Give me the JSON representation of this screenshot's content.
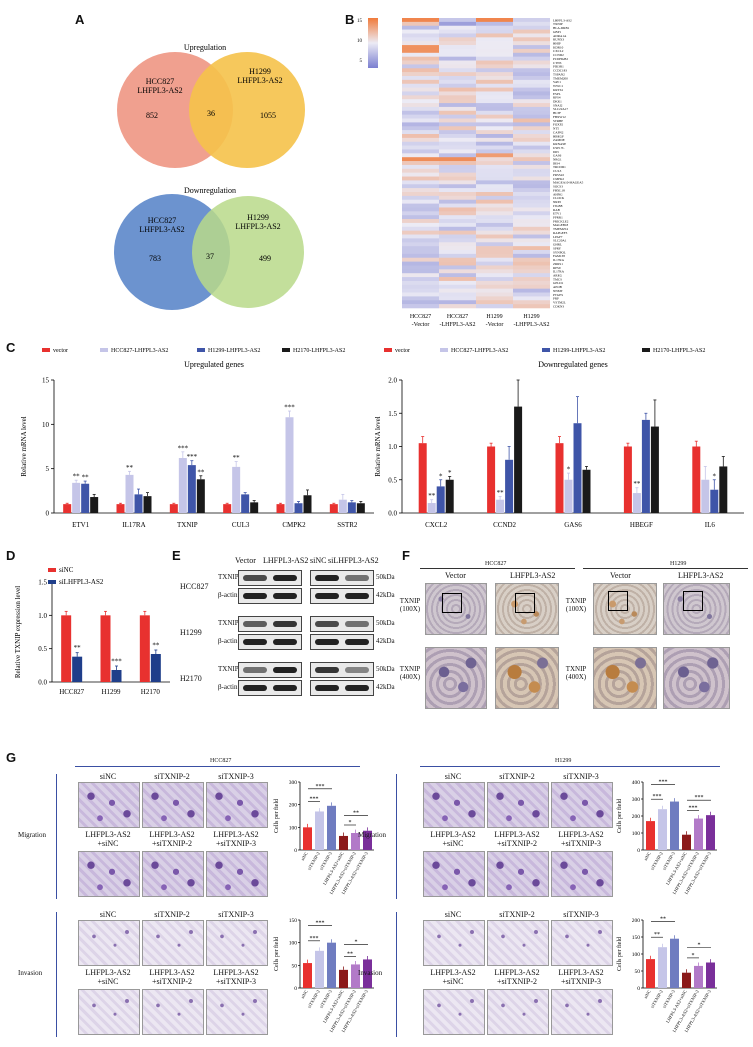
{
  "panels": {
    "A": "A",
    "B": "B",
    "C": "C",
    "D": "D",
    "E": "E",
    "F": "F",
    "G": "G"
  },
  "venn": {
    "up_title": "Upregulation",
    "down_title": "Downregulation",
    "left_label_1": "HCC827",
    "left_label_2": "LHFPL3-AS2",
    "right_label_1": "H1299",
    "right_label_2": "LHFPL3-AS2",
    "up_counts": [
      "852",
      "36",
      "1055"
    ],
    "down_counts": [
      "783",
      "37",
      "499"
    ],
    "colors": {
      "up_left": "#f0a08f",
      "up_right": "#f5c24a",
      "down_left": "#6c93cf",
      "down_right": "#b9d98a"
    }
  },
  "heatmap": {
    "scale_ticks": [
      "15",
      "10",
      "5"
    ],
    "columns": [
      "HCC827\n-Vector",
      "HCC827\n-LHFPL3-AS2",
      "H1299\n-Vector",
      "H1299\n-LHFPL3-AS2"
    ],
    "genes": [
      "LHFPL3-AS2",
      "TXNIP",
      "HLA-DRB1",
      "GBP1",
      "ADRA1A",
      "RUNX3",
      "HHIP",
      "KDR10",
      "CXCL2",
      "CCND2",
      "PCDHGB2",
      "CTNS",
      "PIK3R1",
      "CCDC183",
      "TSPAN2",
      "TMEM200",
      "VAV1",
      "WWC1",
      "KRT34",
      "ESPL",
      "RPS4",
      "DKK1",
      "SNAI2",
      "SLC22A17",
      "HLTF",
      "FBXW12",
      "STRBP",
      "FOXP2",
      "NT5",
      "CAPN2",
      "HBEGF",
      "ZAMDE",
      "KRNASE",
      "USP17L",
      "D63",
      "GAS6",
      "NRG1",
      "IRS4",
      "TRCDD1",
      "CUL3",
      "PRSS22",
      "CMPK2",
      "MAGEA10-MAGEA5",
      "SOCS3",
      "FBXL18",
      "AHNG",
      "CLOCK",
      "NRP2",
      "ITGB8",
      "RAB",
      "ETV1",
      "PPRR1",
      "PRICKLE2",
      "MAGEB18",
      "TMEM254",
      "RAPGEF3",
      "LPAP7",
      "SLC20A1",
      "GHRL",
      "SPRY",
      "SYNPOL",
      "FAM138",
      "IL17RA",
      "ZRRS1",
      "RPS9",
      "IL17RA",
      "AREG",
      "TMCS",
      "GPLD1",
      "APOB",
      "NNMT",
      "PTGES",
      "PRP",
      "VSTM2L",
      "CDKN3"
    ],
    "colors": {
      "low": "#7b7fd0",
      "mid": "#ecebf5",
      "high": "#f07a3a"
    }
  },
  "chart_data": [
    {
      "type": "bar",
      "title": "Upregulated genes",
      "ylabel": "Relative mRNA level",
      "ylim": [
        0,
        15
      ],
      "yticks": [
        "0",
        "5",
        "10",
        "15"
      ],
      "categories": [
        "ETV1",
        "IL17RA",
        "TXNIP",
        "CUL3",
        "CMPK2",
        "SSTR2"
      ],
      "series": [
        {
          "name": "vector",
          "color": "#e8312f",
          "values": [
            1.0,
            1.0,
            1.0,
            1.0,
            1.0,
            1.0
          ]
        },
        {
          "name": "HCC827-LHFPL3-AS2",
          "color": "#c5c5e8",
          "values": [
            3.4,
            4.3,
            6.2,
            5.2,
            10.8,
            1.5
          ]
        },
        {
          "name": "H1299-LHFPL3-AS2",
          "color": "#3f55a8",
          "values": [
            3.3,
            2.1,
            5.4,
            2.1,
            1.1,
            1.2
          ]
        },
        {
          "name": "H2170-LHFPL3-AS2",
          "color": "#1a1a1a",
          "values": [
            1.8,
            1.9,
            3.8,
            1.2,
            2.0,
            1.1
          ]
        }
      ],
      "errors": [
        [
          0.1,
          0.1,
          0.1,
          0.1,
          0.1,
          0.1
        ],
        [
          0.3,
          0.4,
          0.7,
          0.6,
          0.7,
          0.6
        ],
        [
          0.3,
          0.6,
          0.5,
          0.2,
          0.2,
          0.2
        ],
        [
          0.3,
          0.4,
          0.4,
          0.2,
          0.6,
          0.2
        ]
      ],
      "sig": [
        [
          "ETV1",
          1,
          "**"
        ],
        [
          "ETV1",
          2,
          "**"
        ],
        [
          "IL17RA",
          1,
          "**"
        ],
        [
          "TXNIP",
          1,
          "***"
        ],
        [
          "TXNIP",
          2,
          "***"
        ],
        [
          "TXNIP",
          3,
          "**"
        ],
        [
          "CUL3",
          1,
          "**"
        ],
        [
          "CMPK2",
          1,
          "***"
        ]
      ]
    },
    {
      "type": "bar",
      "title": "Downregulated genes",
      "ylabel": "Relative mRNA level",
      "ylim": [
        0,
        2.0
      ],
      "yticks": [
        "0.0",
        "0.5",
        "1.0",
        "1.5",
        "2.0"
      ],
      "categories": [
        "CXCL2",
        "CCND2",
        "GAS6",
        "HBEGF",
        "IL6"
      ],
      "series": [
        {
          "name": "vector",
          "color": "#e8312f",
          "values": [
            1.05,
            1.0,
            1.05,
            1.0,
            1.0
          ]
        },
        {
          "name": "HCC827-LHFPL3-AS2",
          "color": "#c5c5e8",
          "values": [
            0.15,
            0.2,
            0.5,
            0.3,
            0.5
          ]
        },
        {
          "name": "H1299-LHFPL3-AS2",
          "color": "#3f55a8",
          "values": [
            0.4,
            0.8,
            1.35,
            1.4,
            0.35
          ]
        },
        {
          "name": "H2170-LHFPL3-AS2",
          "color": "#1a1a1a",
          "values": [
            0.5,
            1.6,
            0.65,
            1.3,
            0.7
          ]
        }
      ],
      "errors": [
        [
          0.1,
          0.05,
          0.1,
          0.05,
          0.08
        ],
        [
          0.05,
          0.05,
          0.1,
          0.08,
          0.2
        ],
        [
          0.1,
          0.2,
          0.4,
          0.1,
          0.15
        ],
        [
          0.05,
          0.4,
          0.05,
          0.4,
          0.15
        ]
      ],
      "sig": [
        [
          "CXCL2",
          1,
          "**"
        ],
        [
          "CXCL2",
          2,
          "*"
        ],
        [
          "CXCL2",
          3,
          "*"
        ],
        [
          "CCND2",
          1,
          "**"
        ],
        [
          "GAS6",
          1,
          "*"
        ],
        [
          "HBEGF",
          1,
          "**"
        ],
        [
          "IL6",
          2,
          "*"
        ]
      ]
    },
    {
      "type": "bar",
      "ylabel": "Relative TXNIP expression level",
      "ylim": [
        0,
        1.5
      ],
      "yticks": [
        "0.0",
        "0.5",
        "1.0",
        "1.5"
      ],
      "categories": [
        "HCC827",
        "H1299",
        "H2170"
      ],
      "series": [
        {
          "name": "siNC",
          "color": "#e8312f",
          "values": [
            1.0,
            1.0,
            1.0
          ]
        },
        {
          "name": "siLHFPL3-AS2",
          "color": "#1f3e8a",
          "values": [
            0.38,
            0.18,
            0.42
          ]
        }
      ],
      "sig": [
        [
          "HCC827",
          1,
          "**"
        ],
        [
          "H1299",
          1,
          "***"
        ],
        [
          "H2170",
          1,
          "**"
        ]
      ]
    }
  ],
  "blots": {
    "header_left": [
      "Vector",
      "LHFPL3-AS2"
    ],
    "header_right": [
      "siNC",
      "siLHFPL3-AS2"
    ],
    "cells": [
      "HCC827",
      "H1299",
      "H2170"
    ],
    "rows": [
      "TXNIP",
      "β-actin"
    ],
    "kda": [
      "50kDa",
      "42kDa"
    ]
  },
  "ihc": {
    "left_title": "HCC827",
    "right_title": "H1299",
    "cols": [
      "Vector",
      "LHFPL3-AS2"
    ],
    "row_labels": [
      "TXNIP\n(100X)",
      "TXNIP\n(400X)"
    ]
  },
  "transwell": {
    "hcc_title": "HCC827",
    "h1299_title": "H1299",
    "top_labels": [
      "siNC",
      "siTXNIP-2",
      "siTXNIP-3"
    ],
    "bottom_labels": [
      "LHFPL3-AS2\n+siNC",
      "LHFPL3-AS2\n+siTXNIP-2",
      "LHFPL3-AS2\n+siTXNIP-3"
    ],
    "rows": [
      "Migration",
      "Invasion"
    ],
    "ylabel": "Cells per field",
    "groups": [
      "siNC",
      "siTXNIP-2",
      "siTXNIP-3",
      "LHFPL3-AS2+siNC",
      "LHFPL3-AS2+siTXNIP-2",
      "LHFPL3-AS2+siTXNIP-3"
    ],
    "colors": [
      "#e8312f",
      "#c5c5e8",
      "#6f7cc0",
      "#8b1a1a",
      "#b27ac8",
      "#7a2f9a"
    ],
    "charts": [
      {
        "ylim": [
          0,
          300
        ],
        "yticks": [
          "0",
          "100",
          "200",
          "300"
        ],
        "values": [
          100,
          170,
          195,
          62,
          75,
          85
        ],
        "sig": [
          "***",
          "***",
          "*",
          "**"
        ]
      },
      {
        "ylim": [
          0,
          150
        ],
        "yticks": [
          "0",
          "50",
          "100",
          "150"
        ],
        "values": [
          55,
          82,
          100,
          40,
          52,
          63
        ],
        "sig": [
          "***",
          "***",
          "**",
          "*"
        ]
      },
      {
        "ylim": [
          0,
          400
        ],
        "yticks": [
          "0",
          "100",
          "200",
          "300",
          "400"
        ],
        "values": [
          170,
          240,
          285,
          90,
          185,
          205
        ],
        "sig": [
          "***",
          "***",
          "***",
          "***"
        ]
      },
      {
        "ylim": [
          0,
          200
        ],
        "yticks": [
          "0",
          "50",
          "100",
          "150",
          "200"
        ],
        "values": [
          85,
          120,
          145,
          45,
          65,
          75
        ],
        "sig": [
          "**",
          "**",
          "*",
          "*"
        ]
      }
    ]
  }
}
